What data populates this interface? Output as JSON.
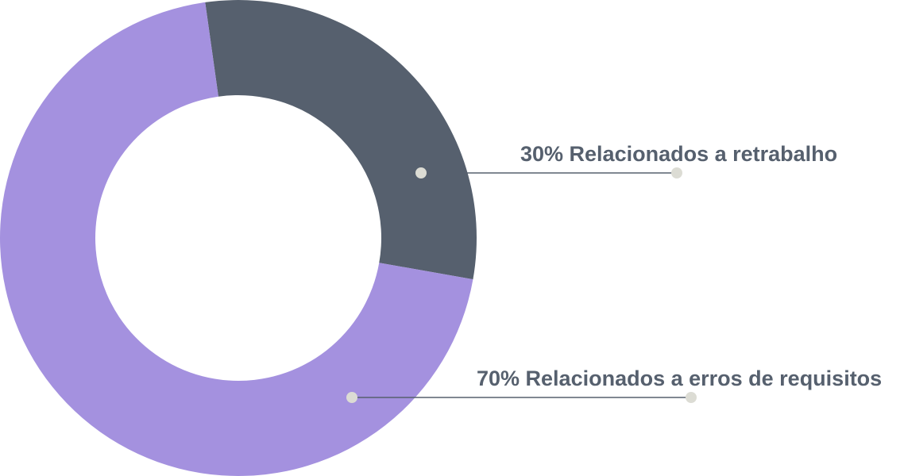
{
  "chart_data": {
    "type": "pie",
    "donut": true,
    "start_angle_deg": -8,
    "slices": [
      {
        "label": "30% Relacionados a retrabalho",
        "value": 30,
        "color": "#56606e"
      },
      {
        "label": "70% Relacionados a erros de requisitos",
        "value": 70,
        "color": "#a491df"
      }
    ],
    "leader_line_color": "#56606e",
    "leader_dot_color": "#dcdcd4",
    "label_color": "#56606e"
  }
}
